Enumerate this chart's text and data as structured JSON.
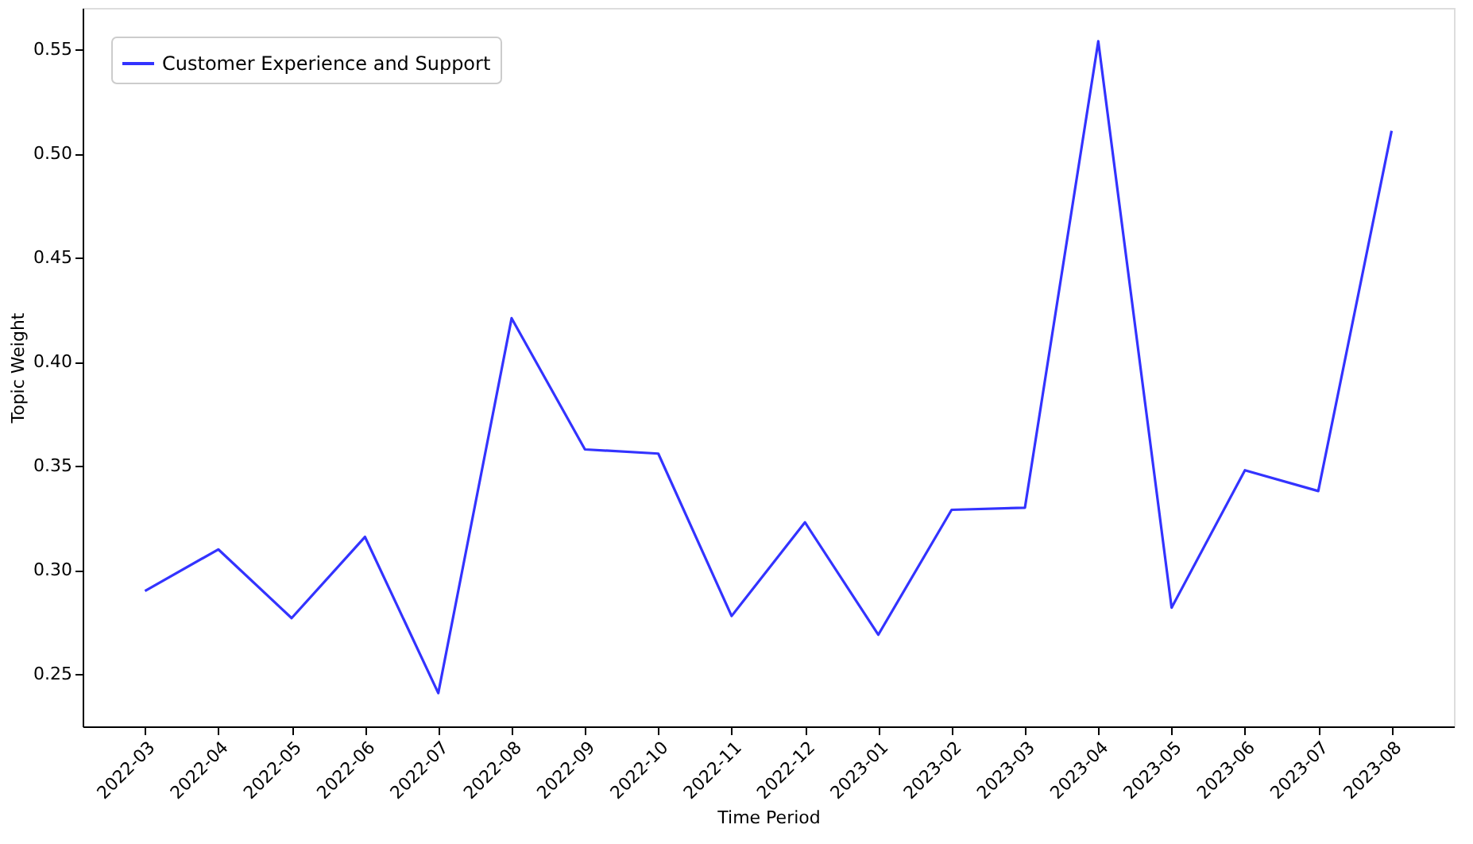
{
  "chart_data": {
    "type": "line",
    "xlabel": "Time Period",
    "ylabel": "Topic Weight",
    "categories": [
      "2022-03",
      "2022-04",
      "2022-05",
      "2022-06",
      "2022-07",
      "2022-08",
      "2022-09",
      "2022-10",
      "2022-11",
      "2022-12",
      "2023-01",
      "2023-02",
      "2023-03",
      "2023-04",
      "2023-05",
      "2023-06",
      "2023-07",
      "2023-08"
    ],
    "series": [
      {
        "name": "Customer Experience and Support",
        "color": "#3333ff",
        "values": [
          0.29,
          0.31,
          0.277,
          0.316,
          0.241,
          0.421,
          0.358,
          0.356,
          0.278,
          0.323,
          0.269,
          0.329,
          0.33,
          0.554,
          0.282,
          0.348,
          0.338,
          0.511
        ]
      }
    ],
    "ylim": [
      0.225,
      0.57
    ],
    "yticks": [
      0.25,
      {
        "value": 0.3,
        "label": "0.30"
      },
      0.35,
      {
        "value": 0.4,
        "label": "0.40"
      },
      0.45,
      {
        "value": 0.5,
        "label": "0.50"
      },
      0.55
    ],
    "grid": false,
    "legend": "top left",
    "marker": "none",
    "line_style": "solid"
  }
}
